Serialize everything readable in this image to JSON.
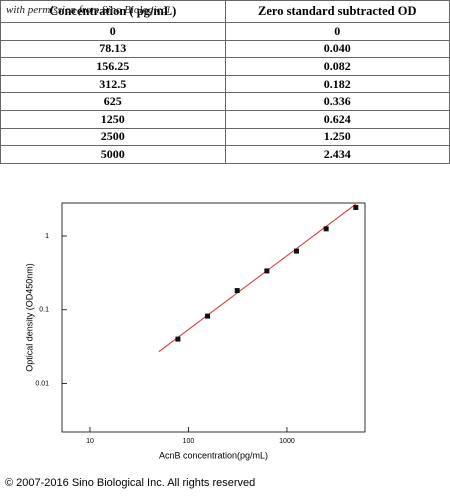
{
  "watermark": "with permission from Sino Biological",
  "table": {
    "headers": [
      "Concentration ( pg/mL)",
      "Zero standard subtracted OD"
    ],
    "rows": [
      [
        "0",
        "0"
      ],
      [
        "78.13",
        "0.040"
      ],
      [
        "156.25",
        "0.082"
      ],
      [
        "312.5",
        "0.182"
      ],
      [
        "625",
        "0.336"
      ],
      [
        "1250",
        "0.624"
      ],
      [
        "2500",
        "1.250"
      ],
      [
        "5000",
        "2.434"
      ]
    ]
  },
  "chart_data": {
    "type": "scatter",
    "xlabel": "AcnB concentration(pg/mL)",
    "ylabel": "Optical density (OD450nm)",
    "x": [
      78.13,
      156.25,
      312.5,
      625,
      1250,
      2500,
      5000
    ],
    "values": [
      0.04,
      0.082,
      0.182,
      0.336,
      0.624,
      1.25,
      2.434
    ],
    "color": "#111111",
    "log_x": true,
    "log_y": true,
    "xlim": [
      5.2,
      6200
    ],
    "ylim": [
      0.0022,
      2.8
    ],
    "xticks": [
      10,
      100,
      1000
    ],
    "yticks": [
      0.01,
      0.1,
      1
    ],
    "fit_line": {
      "color": "#e03030",
      "x": [
        50,
        5000
      ],
      "values": [
        0.027,
        2.7
      ]
    }
  },
  "copyright": "© 2007-2016 Sino Biological Inc. All rights reserved"
}
